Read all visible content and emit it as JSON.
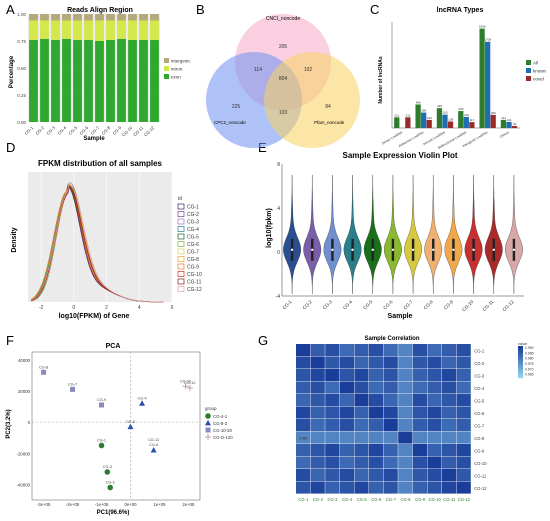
{
  "panels": {
    "A": "A",
    "B": "B",
    "C": "C",
    "D": "D",
    "E": "E",
    "F": "F",
    "G": "G"
  },
  "colors": {
    "intergenic": "#b5a87a",
    "intron": "#d4e84a",
    "exon": "#2ea82e",
    "venn_cnci": "#f6a9c9",
    "venn_cpc": "#6e8ff0",
    "venn_pfam": "#f8d160",
    "lnc_all": "#2e7d2e",
    "lnc_known": "#1f6fb0",
    "lnc_novel": "#9a2b2b",
    "pca_a": "#2e7d2e",
    "pca_b": "#2f4fb0",
    "pca_c": "#8a8ac0",
    "pca_d": "#c0a0a0",
    "heat_low": "#8fd3f0",
    "heat_high": "#1a3d9a"
  },
  "chart_data": [
    {
      "id": "A",
      "type": "bar",
      "title": "Reads Align Region",
      "xlabel": "Sample",
      "ylabel": "Percentage",
      "ylim": [
        0,
        1
      ],
      "yticks": [
        "0.00",
        "0.25",
        "0.50",
        "0.75",
        "1.00"
      ],
      "categories": [
        "CG-1",
        "CG-2",
        "CG-3",
        "CG-4",
        "CG-5",
        "CG-6",
        "CG-7",
        "CG-8",
        "CG-9",
        "CG-10",
        "CG-11",
        "CG-12"
      ],
      "series": [
        {
          "name": "exon",
          "values": [
            0.76,
            0.77,
            0.76,
            0.77,
            0.76,
            0.76,
            0.75,
            0.76,
            0.77,
            0.76,
            0.76,
            0.76
          ]
        },
        {
          "name": "intron",
          "values": [
            0.18,
            0.17,
            0.18,
            0.17,
            0.18,
            0.18,
            0.19,
            0.18,
            0.17,
            0.18,
            0.18,
            0.18
          ]
        },
        {
          "name": "intergenic",
          "values": [
            0.06,
            0.06,
            0.06,
            0.06,
            0.06,
            0.06,
            0.06,
            0.06,
            0.06,
            0.06,
            0.06,
            0.06
          ]
        }
      ],
      "legend": "right"
    },
    {
      "id": "B",
      "type": "venn",
      "sets": [
        "CNCI_noncode",
        "CPC2_noncode",
        "Pfam_noncode"
      ],
      "regions": {
        "cnci_only": "205",
        "cnci_cpc": "114",
        "cnci_pfam": "102",
        "all": "804",
        "cpc_only": "225",
        "cpc_pfam": "103",
        "pfam_only": "84"
      }
    },
    {
      "id": "C",
      "type": "bar",
      "title": "lncRNA Types",
      "ylabel": "Number of lncRNAs",
      "categories": [
        "Sense LncRNA",
        "Antisense LncRNA",
        "Intronic LncRNA",
        "Bidirectional LncRNA",
        "Intergenic LncRNA",
        "Others"
      ],
      "series": [
        {
          "name": "All",
          "values": [
            211,
            466,
            393,
            336,
            1969,
            161
          ]
        },
        {
          "name": "known",
          "values": [
            0,
            306,
            265,
            219,
            1709,
            121
          ]
        },
        {
          "name": "novel",
          "values": [
            211,
            160,
            128,
            117,
            260,
            40
          ]
        }
      ],
      "value_labels": [
        [
          "211",
          "466",
          "393",
          "336",
          "1969",
          "161"
        ],
        [
          "",
          "306",
          "265",
          "219",
          "1709",
          "121"
        ],
        [
          "211",
          "160",
          "128",
          "117",
          "260",
          "40"
        ]
      ],
      "ylim": [
        0,
        2100
      ],
      "legend": "right"
    },
    {
      "id": "D",
      "type": "line",
      "title": "FPKM distribution of all samples",
      "xlabel": "log10(FPKM) of Gene",
      "ylabel": "Density",
      "xlim": [
        -2.8,
        6
      ],
      "xticks": [
        "-2",
        "0",
        "2",
        "4",
        "6"
      ],
      "legend_title": "id",
      "series": [
        {
          "name": "CG-1",
          "peak": 0.95,
          "color": "#3d1f6e"
        },
        {
          "name": "CG-2",
          "peak": 0.97,
          "color": "#7a3f9a"
        },
        {
          "name": "CG-3",
          "peak": 0.96,
          "color": "#9a7abf"
        },
        {
          "name": "CG-4",
          "peak": 0.98,
          "color": "#2a7f8a"
        },
        {
          "name": "CG-5",
          "peak": 0.96,
          "color": "#1a5f1a"
        },
        {
          "name": "CG-6",
          "peak": 0.97,
          "color": "#7ab83a"
        },
        {
          "name": "CG-7",
          "peak": 0.95,
          "color": "#d8d050"
        },
        {
          "name": "CG-8",
          "peak": 0.96,
          "color": "#f0a030"
        },
        {
          "name": "CG-9",
          "peak": 0.97,
          "color": "#e07a30"
        },
        {
          "name": "CG-10",
          "peak": 0.96,
          "color": "#d03030"
        },
        {
          "name": "CG-11",
          "peak": 0.95,
          "color": "#8a1a1a"
        },
        {
          "name": "CG-12",
          "peak": 0.98,
          "color": "#d8a0b0"
        }
      ],
      "legend": "right"
    },
    {
      "id": "E",
      "type": "violin",
      "title": "Sample Expression Violin Plot",
      "xlabel": "Sample",
      "ylabel": "log10(fpkm)",
      "ylim": [
        -4,
        8
      ],
      "yticks": [
        "-4",
        "0",
        "4",
        "8"
      ],
      "categories": [
        "CG-1",
        "CG-2",
        "CG-3",
        "CG-4",
        "CG-5",
        "CG-6",
        "CG-7",
        "CG-8",
        "CG-9",
        "CG-10",
        "CG-11",
        "CG-12"
      ],
      "colors": [
        "#2a4f90",
        "#7a5fa8",
        "#6f8fcf",
        "#2a7f8a",
        "#1a6f1a",
        "#8ab830",
        "#d8c840",
        "#f0b070",
        "#f0a848",
        "#c83030",
        "#aa2a2a",
        "#d8a8a8"
      ],
      "medians": [
        0.2,
        0.2,
        0.2,
        0.2,
        0.2,
        0.2,
        0.2,
        0.2,
        0.2,
        0.2,
        0.2,
        0.2
      ]
    },
    {
      "id": "F",
      "type": "scatter",
      "title": "PCA",
      "xlabel": "PC1(96.6%)",
      "ylabel": "PC2(3.2%)",
      "xticks": [
        "-3e+05",
        "-2e+05",
        "-1e+05",
        "0e+00",
        "1e+05",
        "2e+05"
      ],
      "yticks": [
        "-40000",
        "-20000",
        "0",
        "20000",
        "40000"
      ],
      "xlim": [
        -340000,
        240000
      ],
      "ylim": [
        -50000,
        45000
      ],
      "legend_title": "group",
      "series": [
        {
          "name": "CG-4-1",
          "points": [
            {
              "x": -100000,
              "y": -15000,
              "label": "CG-1"
            },
            {
              "x": -80000,
              "y": -32000,
              "label": "CG-3"
            },
            {
              "x": -70000,
              "y": -42000,
              "label": "CG-2"
            }
          ]
        },
        {
          "name": "CG-8-3",
          "points": [
            {
              "x": 40000,
              "y": 12000,
              "label": "CG-4"
            },
            {
              "x": 0,
              "y": -3000,
              "label": "CG-5"
            },
            {
              "x": 80000,
              "y": -18000,
              "label": "CG-6"
            }
          ]
        },
        {
          "name": "CG-10-20",
          "points": [
            {
              "x": -300000,
              "y": 32000,
              "label": "CG-8"
            },
            {
              "x": -200000,
              "y": 21000,
              "label": "CG-7"
            },
            {
              "x": -100000,
              "y": 11000,
              "label": "CG-9"
            }
          ]
        },
        {
          "name": "CG-D-120",
          "points": [
            {
              "x": 190000,
              "y": 23000,
              "label": "CG-10"
            },
            {
              "x": 205000,
              "y": 22000,
              "label": "CG-12"
            }
          ]
        }
      ],
      "extra_labels": [
        {
          "x": 80000,
          "y": -12000,
          "label": "CG-11"
        }
      ],
      "legend": "right"
    },
    {
      "id": "G",
      "type": "heatmap",
      "title": "Sample Correlation",
      "categories": [
        "CG-1",
        "CG-2",
        "CG-3",
        "CG-4",
        "CG-5",
        "CG-6",
        "CG-7",
        "CG-8",
        "CG-9",
        "CG-10",
        "CG-11",
        "CG-12"
      ],
      "legend_title": "value",
      "legend_ticks": [
        "0.990",
        "0.985",
        "0.980",
        "0.975",
        "0.970",
        "0.965"
      ],
      "value_range": [
        0.96,
        1.0
      ],
      "row7_value": "0.981"
    }
  ]
}
